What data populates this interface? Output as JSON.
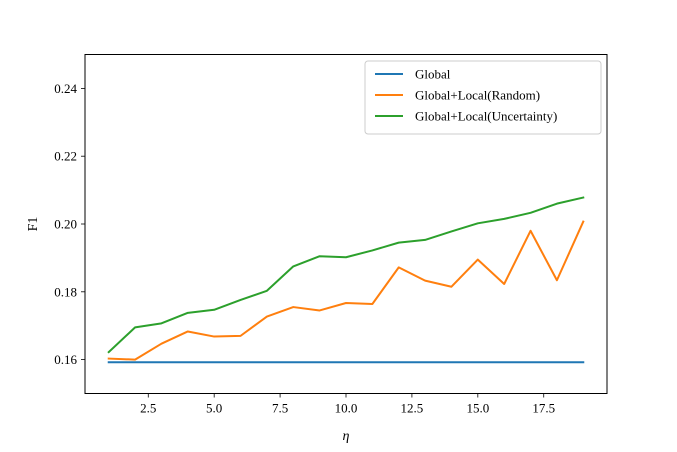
{
  "chart_data": {
    "type": "line",
    "title": "",
    "xlabel": "η",
    "ylabel": "F1",
    "xlim": [
      0.1,
      19.9
    ],
    "ylim": [
      0.15,
      0.25
    ],
    "xticks": [
      2.5,
      5.0,
      7.5,
      10.0,
      12.5,
      15.0,
      17.5
    ],
    "xtick_labels": [
      "2.5",
      "5.0",
      "7.5",
      "10.0",
      "12.5",
      "15.0",
      "17.5"
    ],
    "yticks": [
      0.16,
      0.18,
      0.2,
      0.22,
      0.24
    ],
    "ytick_labels": [
      "0.16",
      "0.18",
      "0.20",
      "0.22",
      "0.24"
    ],
    "grid": false,
    "legend_position": "top-right",
    "x": [
      1,
      2,
      3,
      4,
      5,
      6,
      7,
      8,
      9,
      10,
      11,
      12,
      13,
      14,
      15,
      16,
      17,
      18,
      19
    ],
    "series": [
      {
        "name": "Global",
        "color": "#1f77b4",
        "values": [
          0.1592,
          0.1592,
          0.1592,
          0.1592,
          0.1592,
          0.1592,
          0.1592,
          0.1592,
          0.1592,
          0.1592,
          0.1592,
          0.1592,
          0.1592,
          0.1592,
          0.1592,
          0.1592,
          0.1592,
          0.1592,
          0.1592
        ]
      },
      {
        "name": "Global+Local(Random)",
        "color": "#ff7f0e",
        "values": [
          0.1603,
          0.16,
          0.1647,
          0.1683,
          0.1668,
          0.167,
          0.1727,
          0.1755,
          0.1745,
          0.1767,
          0.1764,
          0.1872,
          0.1833,
          0.1815,
          0.1895,
          0.1823,
          0.198,
          0.1834,
          0.2007
        ]
      },
      {
        "name": "Global+Local(Uncertainty)",
        "color": "#2ca02c",
        "values": [
          0.1622,
          0.1695,
          0.1707,
          0.1738,
          0.1747,
          0.1776,
          0.1803,
          0.1875,
          0.1905,
          0.1902,
          0.1922,
          0.1945,
          0.1953,
          0.1978,
          0.2002,
          0.2015,
          0.2033,
          0.206,
          0.2078
        ]
      }
    ]
  }
}
